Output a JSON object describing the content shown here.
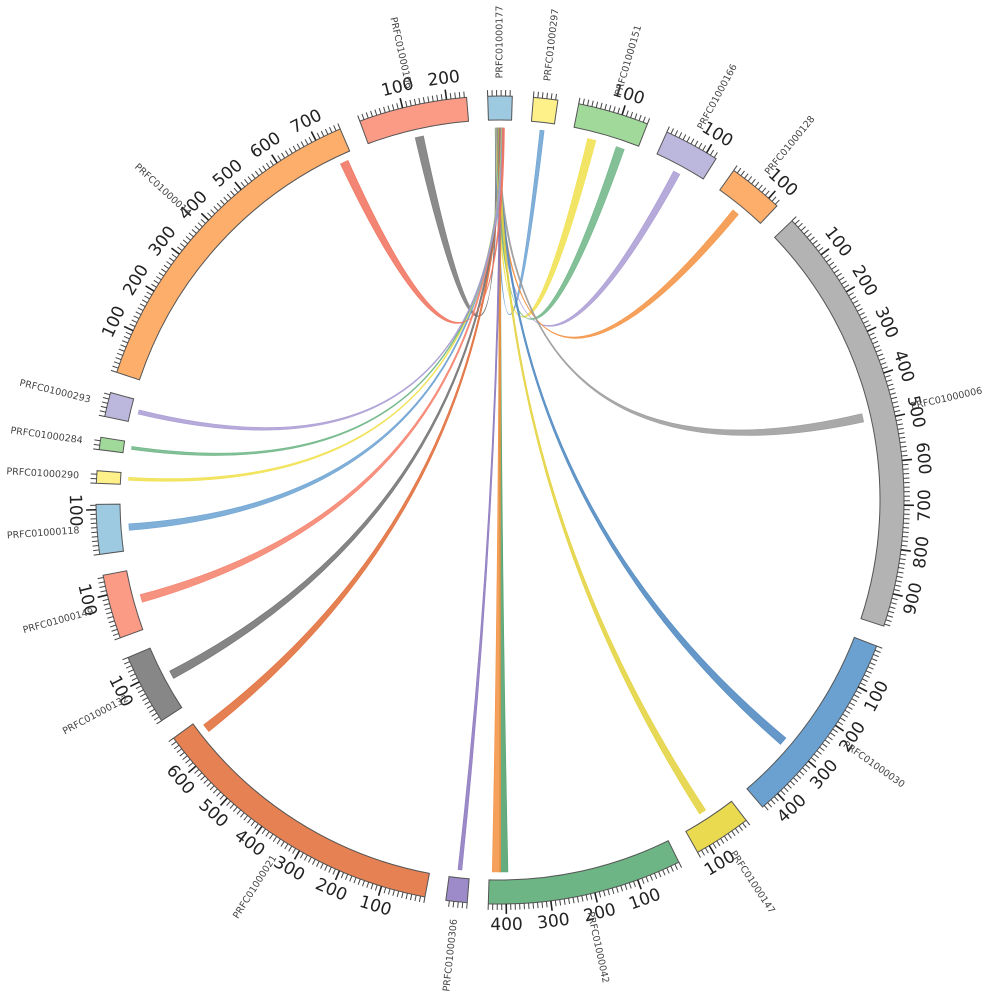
{
  "title": "",
  "colors": {
    "tick": "#444444",
    "label": "#444444"
  },
  "chromosomes": [
    {
      "name": "PRFC01000006",
      "length": 975,
      "color": "#b3b3b3"
    },
    {
      "name": "PRFC01000030",
      "length": 445,
      "color": "#6aa1d1"
    },
    {
      "name": "PRFC01000147",
      "length": 130,
      "color": "#e9da4f"
    },
    {
      "name": "PRFC01000042",
      "length": 440,
      "color": "#6db585"
    },
    {
      "name": "PRFC01000306",
      "length": 48,
      "color": "#9d8ac8"
    },
    {
      "name": "PRFC01000021",
      "length": 680,
      "color": "#e58152"
    },
    {
      "name": "PRFC01000132",
      "length": 160,
      "color": "#878787"
    },
    {
      "name": "PRFC01000149",
      "length": 145,
      "color": "#fb9a85"
    },
    {
      "name": "PRFC01000118",
      "length": 112,
      "color": "#9ecae1"
    },
    {
      "name": "PRFC01000290",
      "length": 28,
      "color": "#fff189"
    },
    {
      "name": "PRFC01000284",
      "length": 28,
      "color": "#a1d99b"
    },
    {
      "name": "PRFC01000293",
      "length": 55,
      "color": "#bcb7dc"
    },
    {
      "name": "PRFC01000014",
      "length": 760,
      "color": "#fdae6b"
    },
    {
      "name": "PRFC01000106",
      "length": 245,
      "color": "#fb9a85"
    },
    {
      "name": "PRFC01000177",
      "length": 55,
      "color": "#9ecae1"
    },
    {
      "name": "PRFC01000297",
      "length": 55,
      "color": "#fff189"
    },
    {
      "name": "PRFC01000151",
      "length": 160,
      "color": "#a1d99b"
    },
    {
      "name": "PRFC01000166",
      "length": 125,
      "color": "#bcb7dc"
    },
    {
      "name": "PRFC01000128",
      "length": 125,
      "color": "#fdae6b"
    }
  ],
  "links": [
    {
      "source": "PRFC01000177",
      "target": "PRFC01000106",
      "color": "#777777"
    },
    {
      "source": "PRFC01000177",
      "target": "PRFC01000297",
      "color": "#6aa1d1"
    },
    {
      "source": "PRFC01000177",
      "target": "PRFC01000151",
      "color": "#f0e04a"
    },
    {
      "source": "PRFC01000177",
      "target": "PRFC01000166",
      "color": "#a99bd4"
    },
    {
      "source": "PRFC01000177",
      "target": "PRFC01000151",
      "color": "#6db585"
    },
    {
      "source": "PRFC01000177",
      "target": "PRFC01000128",
      "color": "#f39040"
    },
    {
      "source": "PRFC01000177",
      "target": "PRFC01000006",
      "color": "#9a9a9a"
    },
    {
      "source": "PRFC01000177",
      "target": "PRFC01000030",
      "color": "#4a86c0"
    },
    {
      "source": "PRFC01000177",
      "target": "PRFC01000147",
      "color": "#e3d13a"
    },
    {
      "source": "PRFC01000177",
      "target": "PRFC01000042",
      "color": "#4c9e68"
    },
    {
      "source": "PRFC01000177",
      "target": "PRFC01000042",
      "color": "#f39040"
    },
    {
      "source": "PRFC01000177",
      "target": "PRFC01000306",
      "color": "#8a76bd"
    },
    {
      "source": "PRFC01000177",
      "target": "PRFC01000021",
      "color": "#e06a35"
    },
    {
      "source": "PRFC01000177",
      "target": "PRFC01000132",
      "color": "#707070"
    },
    {
      "source": "PRFC01000177",
      "target": "PRFC01000149",
      "color": "#f57f6a"
    },
    {
      "source": "PRFC01000177",
      "target": "PRFC01000118",
      "color": "#6aa1d1"
    },
    {
      "source": "PRFC01000177",
      "target": "PRFC01000290",
      "color": "#f0e04a"
    },
    {
      "source": "PRFC01000177",
      "target": "PRFC01000284",
      "color": "#6db585"
    },
    {
      "source": "PRFC01000177",
      "target": "PRFC01000293",
      "color": "#a99bd4"
    },
    {
      "source": "PRFC01000177",
      "target": "PRFC01000014",
      "color": "#f0705a"
    }
  ]
}
